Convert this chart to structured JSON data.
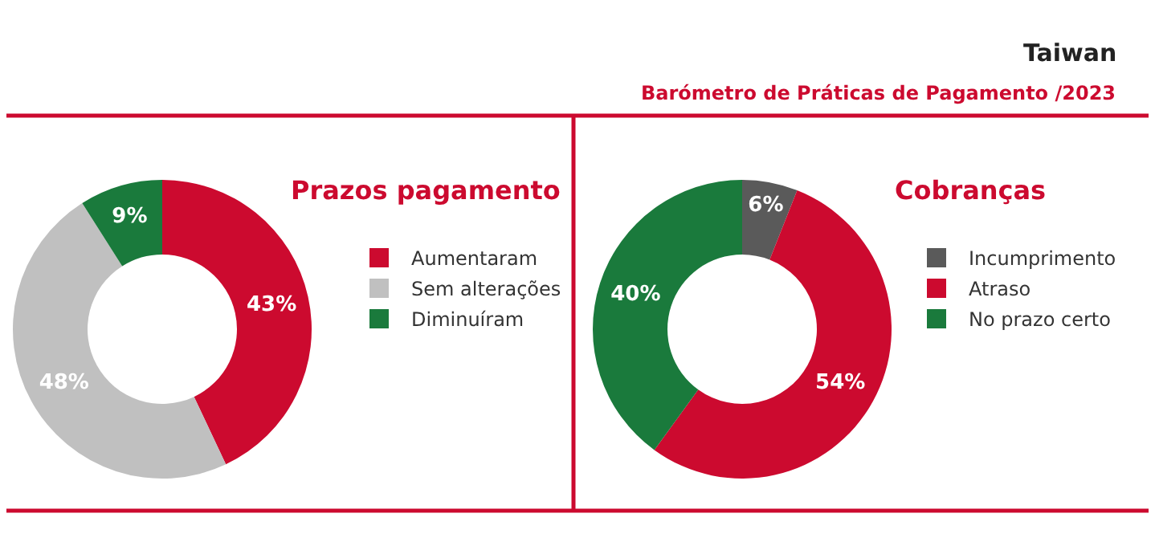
{
  "chart_data": [
    {
      "type": "other",
      "title": "Taiwan",
      "subtitle": "Barómetro de Práticas de Pagamento /2023"
    },
    {
      "type": "donut",
      "title": "Prazos pagamento",
      "categories": [
        "Aumentaram",
        "Sem alterações",
        "Diminuíram"
      ],
      "values": [
        43,
        48,
        9
      ],
      "value_labels": [
        "43%",
        "48%",
        "9%"
      ],
      "colors": [
        "#cc0a2f",
        "#c0c0c0",
        "#1a7a3c"
      ],
      "legend": "right"
    },
    {
      "type": "donut",
      "title": "Cobranças",
      "categories": [
        "Incumprimento",
        "Atraso",
        "No prazo certo"
      ],
      "values": [
        6,
        54,
        40
      ],
      "value_labels": [
        "6%",
        "54%",
        "40%"
      ],
      "colors": [
        "#5a5a5a",
        "#cc0a2f",
        "#1a7a3c"
      ],
      "legend": "right"
    }
  ]
}
